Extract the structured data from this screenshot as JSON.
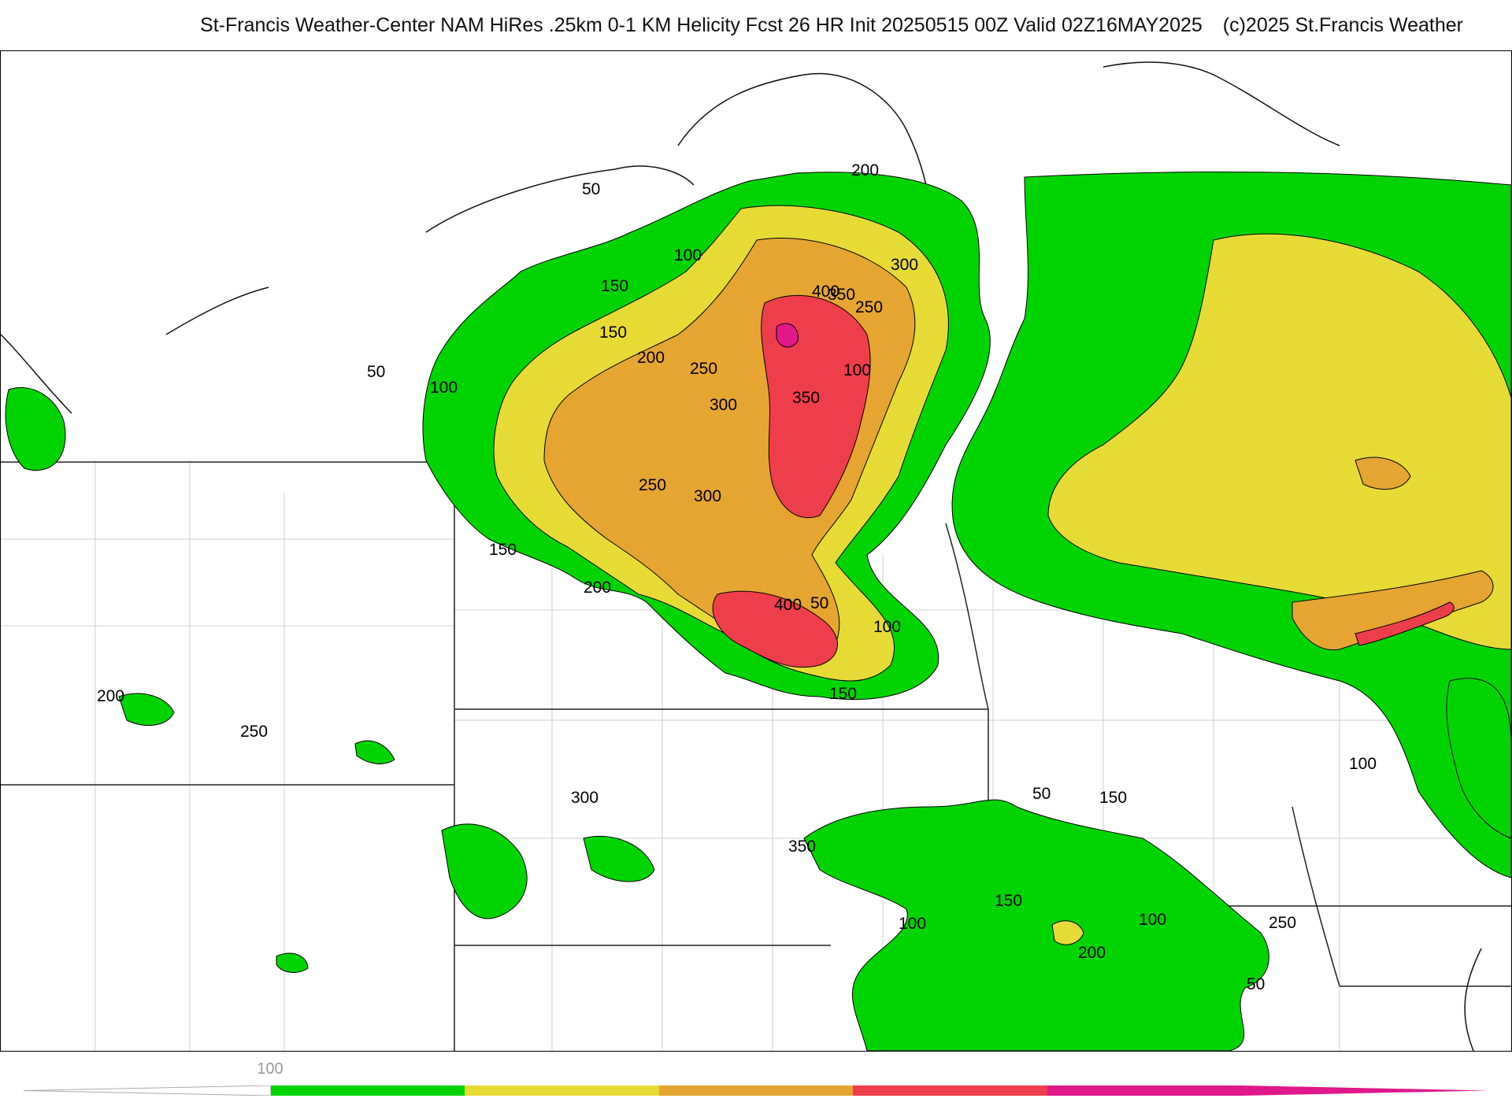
{
  "header": {
    "title": "St-Francis Weather-Center NAM HiRes .25km 0-1 KM Helicity Fcst 26 HR Init 20250515 00Z  Valid 02Z16MAY2025",
    "copyright": "(c)2025 St.Francis Weather"
  },
  "map": {
    "field": "0-1 KM Helicity",
    "fill_colors": {
      "100": "#00d400",
      "200": "#e6db34",
      "300": "#e5a530",
      "400": "#ef3e4b",
      "500": "#e0188a"
    },
    "contour_labels": [
      "50",
      "100",
      "150",
      "200",
      "250",
      "300",
      "350",
      "400",
      "50",
      "100",
      "150",
      "200",
      "250",
      "300",
      "350",
      "100",
      "150",
      "200",
      "250",
      "300",
      "400",
      "50",
      "100",
      "150",
      "200",
      "250",
      "300",
      "350",
      "50",
      "100",
      "150",
      "200",
      "250",
      "50",
      "100",
      "150",
      "100"
    ]
  },
  "legend": {
    "tick_label": "100",
    "colors": [
      "#00d400",
      "#e6db34",
      "#e5a530",
      "#ef3e4b",
      "#e0188a"
    ]
  }
}
